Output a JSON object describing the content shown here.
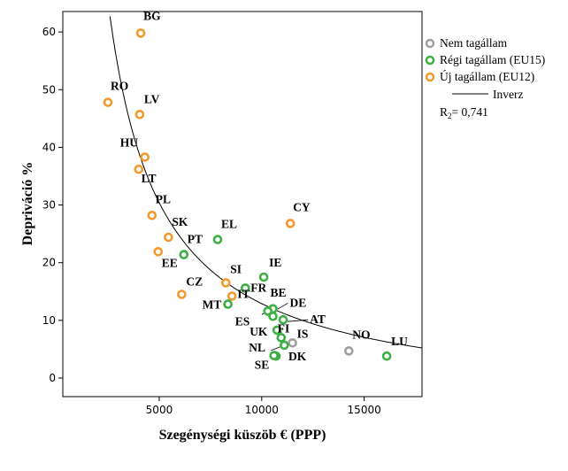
{
  "chart_data": {
    "type": "scatter",
    "xlabel": "Szegénységi küszöb € (PPP)",
    "ylabel": "Depriváció %",
    "xlim": [
      1000,
      19000
    ],
    "ylim": [
      -3,
      64
    ],
    "x_ticks": [
      5000,
      10000,
      15000
    ],
    "y_ticks": [
      0,
      10,
      20,
      30,
      40,
      50,
      60
    ],
    "colors": {
      "nem": "#a0a0a0",
      "regi": "#3cb043",
      "uj": "#f39a2e",
      "curve": "#000000"
    },
    "legend": {
      "placement": "right",
      "items": [
        {
          "key": "nem",
          "label": "Nem tagállam"
        },
        {
          "key": "regi",
          "label": "Régi tagállam (EU15)"
        },
        {
          "key": "uj",
          "label": "Új tagállam (EU12)"
        }
      ],
      "fit_label": "Inverz",
      "r2_prefix": "R",
      "r2_sub": "2",
      "r2_value": "= 0,741"
    },
    "fit": {
      "type": "inverse",
      "a": -4.6,
      "b": 175000
    },
    "points": [
      {
        "label": "BG",
        "group": "uj",
        "x": 4100,
        "y": 59.8
      },
      {
        "label": "RO",
        "group": "uj",
        "x": 2500,
        "y": 47.8
      },
      {
        "label": "LV",
        "group": "uj",
        "x": 4050,
        "y": 45.7
      },
      {
        "label": "HU",
        "group": "uj",
        "x": 4300,
        "y": 38.3
      },
      {
        "label": "LT",
        "group": "uj",
        "x": 4000,
        "y": 36.2
      },
      {
        "label": "PL",
        "group": "uj",
        "x": 4650,
        "y": 28.2
      },
      {
        "label": "SK",
        "group": "uj",
        "x": 5450,
        "y": 24.4
      },
      {
        "label": "EE",
        "group": "uj",
        "x": 4950,
        "y": 21.9
      },
      {
        "label": "CZ",
        "group": "uj",
        "x": 6100,
        "y": 14.5
      },
      {
        "label": "SI",
        "group": "uj",
        "x": 8250,
        "y": 16.5
      },
      {
        "label": "IT",
        "group": "uj",
        "x": 8550,
        "y": 14.2
      },
      {
        "label": "MT",
        "group": "regi",
        "x": 8350,
        "y": 12.8
      },
      {
        "label": "CY",
        "group": "uj",
        "x": 11400,
        "y": 26.8
      },
      {
        "label": "EL",
        "group": "regi",
        "x": 7850,
        "y": 24.0
      },
      {
        "label": "PT",
        "group": "regi",
        "x": 6200,
        "y": 21.4
      },
      {
        "label": "IE",
        "group": "regi",
        "x": 10100,
        "y": 17.5
      },
      {
        "label": "FR",
        "group": "regi",
        "x": 9200,
        "y": 15.6
      },
      {
        "label": "BE",
        "group": "regi",
        "x": 10550,
        "y": 12.0
      },
      {
        "label": "ES",
        "group": "regi",
        "x": 10300,
        "y": 11.6
      },
      {
        "label": "DE",
        "group": "regi",
        "x": 10550,
        "y": 10.7
      },
      {
        "label": "AT",
        "group": "regi",
        "x": 11050,
        "y": 10.1
      },
      {
        "label": "UK",
        "group": "regi",
        "x": 10750,
        "y": 8.3
      },
      {
        "label": "FI",
        "group": "regi",
        "x": 10950,
        "y": 7.0
      },
      {
        "label": "IS",
        "group": "nem",
        "x": 11500,
        "y": 6.1
      },
      {
        "label": "NL",
        "group": "regi",
        "x": 11100,
        "y": 5.7
      },
      {
        "label": "DK",
        "group": "regi",
        "x": 10700,
        "y": 3.8
      },
      {
        "label": "SE",
        "group": "regi",
        "x": 10600,
        "y": 3.9
      },
      {
        "label": "NO",
        "group": "nem",
        "x": 14250,
        "y": 4.7
      },
      {
        "label": "LU",
        "group": "regi",
        "x": 16100,
        "y": 3.8
      }
    ]
  }
}
